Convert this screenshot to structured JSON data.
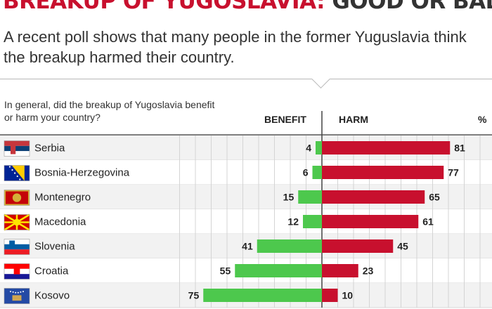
{
  "header": {
    "title_main": "BREAKUP OF YUGOSLAVIA:",
    "title_rest": "GOOD OR BAD?",
    "subtitle": "A recent poll shows that many people in the former Yuguslavia think the breakup harmed their country."
  },
  "chart_data": {
    "type": "bar",
    "question": "In general, did the breakup of Yugoslavia benefit or harm your country?",
    "benefit_label": "BENEFIT",
    "harm_label": "HARM",
    "unit_label": "%",
    "categories": [
      "Serbia",
      "Bosnia-Herzegovina",
      "Montenegro",
      "Macedonia",
      "Slovenia",
      "Croatia",
      "Kosovo"
    ],
    "series": [
      {
        "name": "BENEFIT",
        "values": [
          4,
          6,
          15,
          12,
          41,
          55,
          75
        ]
      },
      {
        "name": "HARM",
        "values": [
          81,
          77,
          65,
          61,
          45,
          23,
          10
        ]
      }
    ],
    "colors": {
      "benefit": "#4dc84d",
      "harm": "#c8102e",
      "title_accent": "#c8102e"
    },
    "flag_icons": [
      "serbia-flag-icon",
      "bosnia-herzegovina-flag-icon",
      "montenegro-flag-icon",
      "macedonia-flag-icon",
      "slovenia-flag-icon",
      "croatia-flag-icon",
      "kosovo-flag-icon"
    ]
  }
}
